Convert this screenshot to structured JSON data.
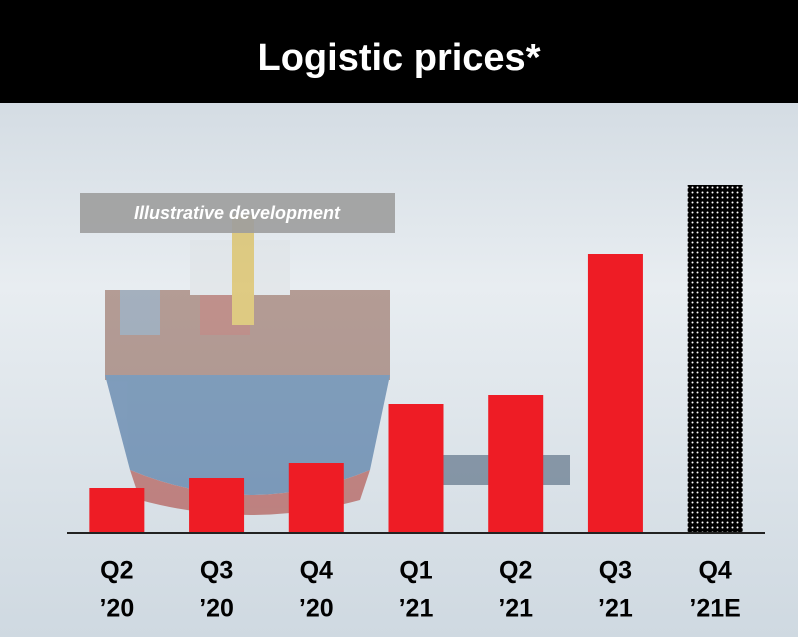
{
  "chart_data": {
    "type": "bar",
    "title": "Logistic prices*",
    "annotation": "Illustrative development",
    "categories": [
      [
        "Q2",
        "’20"
      ],
      [
        "Q3",
        "’20"
      ],
      [
        "Q4",
        "’20"
      ],
      [
        "Q1",
        "’21"
      ],
      [
        "Q2",
        "’21"
      ],
      [
        "Q3",
        "’21"
      ],
      [
        "Q4",
        "’21E"
      ]
    ],
    "values": [
      45,
      55,
      70,
      129,
      138,
      279,
      348
    ],
    "color": "#ee1c25",
    "patterns": [
      null,
      null,
      null,
      null,
      null,
      null,
      "dots"
    ],
    "ylim": [
      0,
      400
    ]
  }
}
